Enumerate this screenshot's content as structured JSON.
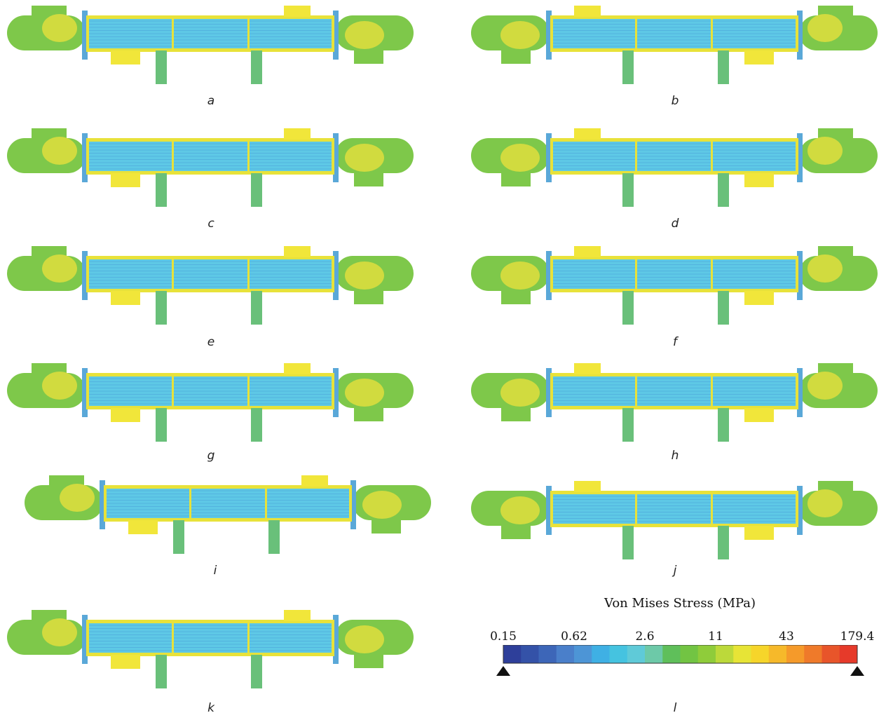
{
  "panels": [
    {
      "label": "a"
    },
    {
      "label": "b"
    },
    {
      "label": "c"
    },
    {
      "label": "d"
    },
    {
      "label": "e"
    },
    {
      "label": "f"
    },
    {
      "label": "g"
    },
    {
      "label": "h"
    },
    {
      "label": "i"
    },
    {
      "label": "j"
    },
    {
      "label": "k"
    }
  ],
  "legend": {
    "title": "Von Mises Stress (MPa)",
    "ticks": [
      "0.15",
      "0.62",
      "2.6",
      "11",
      "43",
      "179.4"
    ],
    "panel_label": "l",
    "colors": [
      "#2e3f9a",
      "#3452a8",
      "#3d66b8",
      "#4a7fca",
      "#4d95d6",
      "#3fb0e4",
      "#45c3e0",
      "#5fcad8",
      "#6dc9a8",
      "#5fbf5a",
      "#72c443",
      "#8fcc3a",
      "#bcd93a",
      "#e7e436",
      "#f6d52a",
      "#f6b92a",
      "#f59a2a",
      "#ef7a2a",
      "#e8552a",
      "#e63a2a"
    ],
    "shell_colors": {
      "head": "#7ec84a",
      "head_hot": "#e6e03c",
      "tube": "#5ec8e6",
      "shell_edge": "#e8e23a",
      "nozzle": "#f1e63a"
    }
  }
}
